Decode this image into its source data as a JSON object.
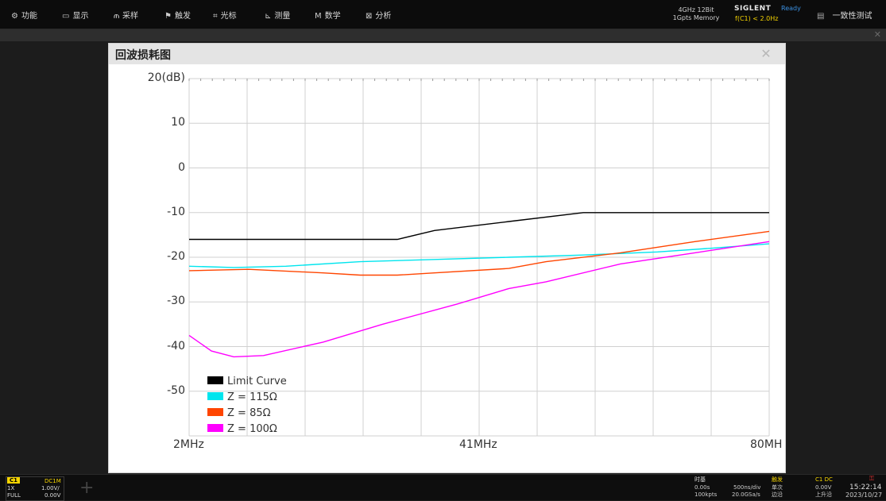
{
  "menu": [
    {
      "label": "功能",
      "icon": "gear-icon",
      "glyph": "⚙"
    },
    {
      "label": "显示",
      "icon": "display-icon",
      "glyph": "▭"
    },
    {
      "label": "采样",
      "icon": "acquire-icon",
      "glyph": "⫙"
    },
    {
      "label": "触发",
      "icon": "trigger-icon",
      "glyph": "⚑"
    },
    {
      "label": "光标",
      "icon": "cursor-icon",
      "glyph": "⌗"
    },
    {
      "label": "测量",
      "icon": "measure-icon",
      "glyph": "⊾"
    },
    {
      "label": "数学",
      "icon": "math-icon",
      "glyph": "M"
    },
    {
      "label": "分析",
      "icon": "analysis-icon",
      "glyph": "⊠"
    }
  ],
  "status": {
    "spec_line1": "4GHz 12Bit",
    "spec_line2": "1Gpts Memory",
    "brand": "SIGLENT",
    "ready": "Ready",
    "freq": "f(C1) < 2.0Hz",
    "compliance": "一致性测试"
  },
  "window": {
    "title": "回波损耗图",
    "close_glyph": "✕"
  },
  "chart_data": {
    "type": "line",
    "ylim": [
      -60,
      20
    ],
    "y_ticks": [
      "20(dB)",
      "10",
      "0",
      "-10",
      "-20",
      "-30",
      "-40",
      "-50"
    ],
    "x_ticks": [
      "2MHz",
      "41MHz",
      "80MH"
    ],
    "x_range_mhz": [
      2,
      80
    ],
    "grid": true,
    "legend_position": "bottom-left",
    "series": [
      {
        "name": "Limit Curve",
        "color": "#000000",
        "points": [
          [
            2,
            -16
          ],
          [
            10,
            -16
          ],
          [
            20,
            -16
          ],
          [
            30,
            -16
          ],
          [
            35,
            -14
          ],
          [
            45,
            -12
          ],
          [
            55,
            -10
          ],
          [
            60,
            -10
          ],
          [
            70,
            -10
          ],
          [
            80,
            -10
          ]
        ]
      },
      {
        "name": "Z = 115Ω",
        "color": "#00e5ee",
        "points": [
          [
            2,
            -22
          ],
          [
            8,
            -22.3
          ],
          [
            15,
            -22
          ],
          [
            25,
            -21
          ],
          [
            35,
            -20.5
          ],
          [
            45,
            -20
          ],
          [
            55,
            -19.5
          ],
          [
            65,
            -18.8
          ],
          [
            72,
            -18
          ],
          [
            80,
            -17
          ]
        ]
      },
      {
        "name": "Z = 85Ω",
        "color": "#ff4500",
        "points": [
          [
            2,
            -23
          ],
          [
            10,
            -22.7
          ],
          [
            20,
            -23.5
          ],
          [
            25,
            -24
          ],
          [
            30,
            -24
          ],
          [
            35,
            -23.5
          ],
          [
            45,
            -22.5
          ],
          [
            50,
            -21
          ],
          [
            60,
            -19
          ],
          [
            70,
            -16.5
          ],
          [
            80,
            -14.2
          ]
        ]
      },
      {
        "name": "Z = 100Ω",
        "color": "#ff00ff",
        "points": [
          [
            2,
            -37.5
          ],
          [
            5,
            -41
          ],
          [
            8,
            -42.3
          ],
          [
            12,
            -42
          ],
          [
            20,
            -39
          ],
          [
            28,
            -35
          ],
          [
            38,
            -30.5
          ],
          [
            45,
            -27
          ],
          [
            50,
            -25.5
          ],
          [
            60,
            -21.5
          ],
          [
            70,
            -19
          ],
          [
            80,
            -16.5
          ]
        ]
      }
    ]
  },
  "bottom": {
    "ch_label": "C1",
    "ch_coupling": "DC1M",
    "ch_probe": "1X",
    "ch_scale": "1.00V/",
    "ch_bw": "FULL",
    "ch_offset": "0.00V",
    "timebase_title": "时基",
    "tb_delay": "0.00s",
    "tb_scale": "500ns/div",
    "tb_points": "100kpts",
    "tb_rate": "20.0GSa/s",
    "trig_title": "触发",
    "trig_mode": "单次",
    "trig_edge": "边沿",
    "trig_src": "C1 DC",
    "trig_level": "0.00V",
    "trig_slope": "上升沿",
    "time": "15:22:14",
    "date": "2023/10/27"
  },
  "colors": {
    "accent_yellow": "#f5d400",
    "ready_blue": "#3a8fe0"
  }
}
